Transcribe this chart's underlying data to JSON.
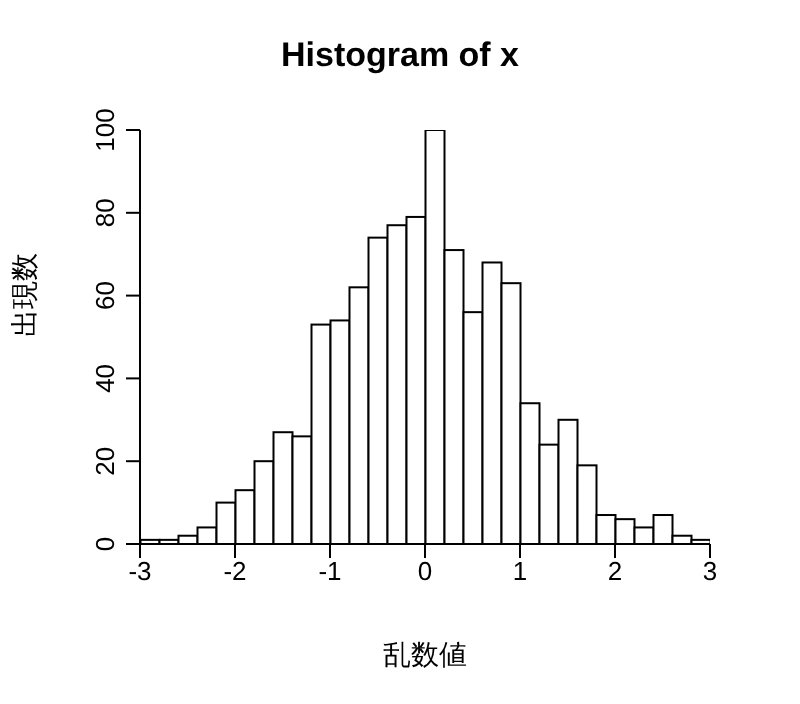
{
  "chart_data": {
    "type": "histogram",
    "title": "Histogram of x",
    "xlabel": "乱数値",
    "ylabel": "出現数",
    "bins": [
      -3,
      -2.8,
      -2.6,
      -2.4,
      -2.2,
      -2,
      -1.8,
      -1.6,
      -1.4,
      -1.2,
      -1,
      -0.8,
      -0.6,
      -0.4,
      -0.2,
      0,
      0.2,
      0.4,
      0.6,
      0.8,
      1,
      1.2,
      1.4,
      1.6,
      1.8,
      2,
      2.2,
      2.4,
      2.6,
      2.8,
      3
    ],
    "values": [
      1,
      1,
      2,
      4,
      10,
      13,
      20,
      27,
      26,
      53,
      54,
      62,
      74,
      77,
      79,
      100,
      71,
      56,
      68,
      63,
      34,
      24,
      30,
      19,
      7,
      6,
      4,
      7,
      2,
      1
    ],
    "color": "#ffffff",
    "xlim": [
      -3,
      3
    ],
    "xticks": [
      -3,
      -2,
      -1,
      0,
      1,
      2,
      3
    ],
    "ylim": [
      0,
      100
    ],
    "yticks": [
      0,
      20,
      40,
      60,
      80,
      100
    ],
    "grid": false
  }
}
